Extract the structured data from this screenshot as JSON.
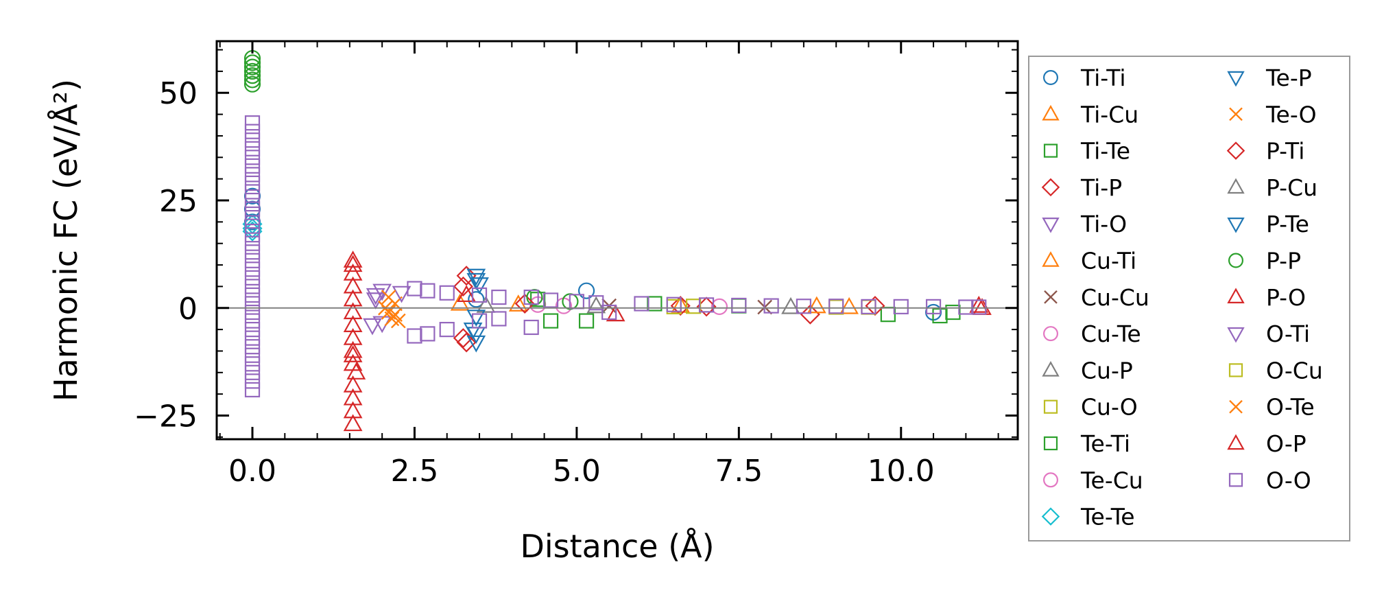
{
  "chart_data": {
    "type": "scatter",
    "xlabel": "Distance (Å)",
    "ylabel": "Harmonic FC (eV/Å²)",
    "xlim": [
      -0.55,
      11.8
    ],
    "ylim": [
      -30.5,
      62
    ],
    "xticks": [
      0.0,
      2.5,
      5.0,
      7.5,
      10.0
    ],
    "xtick_labels": [
      "0.0",
      "2.5",
      "5.0",
      "7.5",
      "10.0"
    ],
    "yticks": [
      -25,
      0,
      25,
      50
    ],
    "ytick_labels": [
      "−25",
      "0",
      "25",
      "50"
    ],
    "zero_line": true,
    "grid": false,
    "legend_position": "outside-right",
    "legend_columns": 2,
    "series": [
      {
        "name": "Ti-Ti",
        "marker": "circle",
        "color": "#1f77b4",
        "points": [
          [
            0,
            26
          ],
          [
            0,
            23
          ],
          [
            0,
            20
          ],
          [
            5.15,
            4
          ],
          [
            10.5,
            -1
          ],
          [
            3.45,
            2
          ]
        ]
      },
      {
        "name": "Ti-Cu",
        "marker": "triangle-up",
        "color": "#ff7f0e",
        "points": [
          [
            3.2,
            1
          ],
          [
            6.6,
            0.5
          ],
          [
            9.2,
            0.2
          ]
        ]
      },
      {
        "name": "Ti-Te",
        "marker": "square",
        "color": "#2ca02c",
        "points": [
          [
            4.6,
            -3
          ],
          [
            5.15,
            -3
          ],
          [
            6.2,
            1
          ],
          [
            9.8,
            -1.5
          ],
          [
            10.6,
            -1.8
          ]
        ]
      },
      {
        "name": "Ti-P",
        "marker": "diamond",
        "color": "#d62728",
        "points": [
          [
            3.3,
            7.5
          ],
          [
            3.25,
            5
          ],
          [
            3.25,
            -7
          ],
          [
            3.3,
            -8
          ],
          [
            6.6,
            0.5
          ],
          [
            8.6,
            -1.5
          ],
          [
            9.6,
            0.5
          ]
        ]
      },
      {
        "name": "Ti-O",
        "marker": "triangle-down",
        "color": "#9467bd",
        "points": [
          [
            1.85,
            -4
          ],
          [
            1.9,
            2
          ],
          [
            2.0,
            -3.5
          ]
        ]
      },
      {
        "name": "Cu-Ti",
        "marker": "triangle-up",
        "color": "#ff7f0e",
        "points": [
          [
            4.1,
            0.8
          ],
          [
            8.7,
            0.4
          ]
        ]
      },
      {
        "name": "Cu-Cu",
        "marker": "x",
        "color": "#8c564b",
        "points": [
          [
            5.5,
            0.5
          ],
          [
            7.9,
            0.2
          ]
        ]
      },
      {
        "name": "Cu-Te",
        "marker": "circle",
        "color": "#e377c2",
        "points": [
          [
            4.4,
            0.8
          ],
          [
            7.2,
            0.3
          ]
        ]
      },
      {
        "name": "Cu-P",
        "marker": "triangle-up",
        "color": "#7f7f7f",
        "points": [
          [
            3.6,
            0.5
          ],
          [
            8.3,
            0.2
          ]
        ]
      },
      {
        "name": "Cu-O",
        "marker": "square",
        "color": "#bcbd22",
        "points": [
          [
            6.5,
            0.3
          ],
          [
            9.0,
            0.2
          ]
        ]
      },
      {
        "name": "Te-Ti",
        "marker": "square",
        "color": "#2ca02c",
        "points": [
          [
            4.4,
            2
          ],
          [
            7.5,
            0.5
          ],
          [
            10.8,
            -1
          ]
        ]
      },
      {
        "name": "Te-Cu",
        "marker": "circle",
        "color": "#e377c2",
        "points": [
          [
            4.8,
            0.5
          ]
        ]
      },
      {
        "name": "Te-Te",
        "marker": "diamond",
        "color": "#17becf",
        "points": [
          [
            0,
            19.5
          ],
          [
            0,
            18.5
          ],
          [
            0,
            17.8
          ]
        ]
      },
      {
        "name": "Te-P",
        "marker": "triangle-down",
        "color": "#1f77b4",
        "points": [
          [
            3.45,
            7.5
          ],
          [
            3.45,
            6.5
          ],
          [
            3.5,
            5.5
          ]
        ]
      },
      {
        "name": "Te-O",
        "marker": "x",
        "color": "#ff7f0e",
        "points": [
          [
            2.05,
            0
          ],
          [
            2.1,
            -1
          ],
          [
            2.15,
            -2.5
          ],
          [
            2.2,
            1
          ],
          [
            2.25,
            -3
          ]
        ]
      },
      {
        "name": "P-Ti",
        "marker": "diamond",
        "color": "#d62728",
        "points": [
          [
            4.2,
            1
          ],
          [
            7.0,
            0.3
          ]
        ]
      },
      {
        "name": "P-Cu",
        "marker": "triangle-up",
        "color": "#7f7f7f",
        "points": [
          [
            5.3,
            0.4
          ]
        ]
      },
      {
        "name": "P-Te",
        "marker": "triangle-down",
        "color": "#1f77b4",
        "points": [
          [
            3.45,
            -2
          ],
          [
            3.4,
            -5
          ],
          [
            3.45,
            -6
          ],
          [
            3.45,
            -8
          ]
        ]
      },
      {
        "name": "P-P",
        "marker": "circle",
        "color": "#2ca02c",
        "points": [
          [
            0,
            58
          ],
          [
            0,
            57
          ],
          [
            0,
            56
          ],
          [
            0,
            55
          ],
          [
            0,
            54
          ],
          [
            0,
            53
          ],
          [
            0,
            52
          ],
          [
            4.35,
            2.5
          ],
          [
            4.9,
            1.5
          ]
        ]
      },
      {
        "name": "P-O",
        "marker": "triangle-up",
        "color": "#d62728",
        "points": [
          [
            1.55,
            10
          ],
          [
            1.55,
            8
          ],
          [
            1.55,
            5
          ],
          [
            1.55,
            2
          ],
          [
            1.55,
            -1
          ],
          [
            1.55,
            -4
          ],
          [
            1.55,
            -7
          ],
          [
            1.55,
            -10
          ],
          [
            1.55,
            -13
          ],
          [
            1.55,
            -18
          ],
          [
            1.55,
            -21
          ],
          [
            1.55,
            -24
          ],
          [
            1.55,
            -27
          ],
          [
            3.3,
            3
          ],
          [
            5.6,
            -1.5
          ],
          [
            11.25,
            0
          ]
        ]
      },
      {
        "name": "O-Ti",
        "marker": "triangle-down",
        "color": "#9467bd",
        "points": [
          [
            1.9,
            3
          ],
          [
            2.0,
            4
          ],
          [
            2.3,
            3.5
          ]
        ]
      },
      {
        "name": "O-Cu",
        "marker": "square",
        "color": "#bcbd22",
        "points": [
          [
            6.8,
            0.4
          ],
          [
            9.5,
            0.2
          ]
        ]
      },
      {
        "name": "O-Te",
        "marker": "x",
        "color": "#ff7f0e",
        "points": [
          [
            2.1,
            2.5
          ],
          [
            2.2,
            -1.5
          ]
        ]
      },
      {
        "name": "O-P",
        "marker": "triangle-up",
        "color": "#d62728",
        "points": [
          [
            1.55,
            11
          ],
          [
            1.55,
            -11
          ],
          [
            1.6,
            -15
          ],
          [
            11.2,
            0.5
          ]
        ]
      },
      {
        "name": "O-O",
        "marker": "square",
        "color": "#9467bd",
        "points": [
          [
            0,
            43
          ],
          [
            0,
            41
          ],
          [
            0,
            39
          ],
          [
            0,
            37
          ],
          [
            0,
            35
          ],
          [
            0,
            33
          ],
          [
            0,
            31
          ],
          [
            0,
            29
          ],
          [
            0,
            27
          ],
          [
            0,
            25
          ],
          [
            0,
            23
          ],
          [
            0,
            21
          ],
          [
            0,
            19
          ],
          [
            0,
            17
          ],
          [
            0,
            15
          ],
          [
            0,
            13
          ],
          [
            0,
            11
          ],
          [
            0,
            9
          ],
          [
            0,
            7
          ],
          [
            0,
            5
          ],
          [
            0,
            3
          ],
          [
            0,
            1
          ],
          [
            0,
            -1
          ],
          [
            0,
            -3
          ],
          [
            0,
            -5
          ],
          [
            0,
            -7
          ],
          [
            0,
            -9
          ],
          [
            0,
            -11
          ],
          [
            0,
            -13
          ],
          [
            0,
            -15
          ],
          [
            0,
            -17
          ],
          [
            0,
            -19
          ],
          [
            2.5,
            4.5
          ],
          [
            2.5,
            -6.5
          ],
          [
            2.7,
            4
          ],
          [
            2.7,
            -6
          ],
          [
            3.0,
            3.5
          ],
          [
            3.0,
            -5
          ],
          [
            3.5,
            3
          ],
          [
            3.5,
            -3
          ],
          [
            3.8,
            2.5
          ],
          [
            3.8,
            -2.5
          ],
          [
            4.3,
            2.5
          ],
          [
            4.3,
            -4.5
          ],
          [
            4.6,
            1.8
          ],
          [
            5.0,
            1.5
          ],
          [
            5.3,
            1.2
          ],
          [
            5.5,
            -1
          ],
          [
            6.0,
            1
          ],
          [
            6.5,
            0.8
          ],
          [
            7.0,
            0.7
          ],
          [
            7.5,
            0.6
          ],
          [
            8.0,
            0.5
          ],
          [
            8.5,
            0.4
          ],
          [
            9.0,
            0.4
          ],
          [
            9.5,
            0.3
          ],
          [
            10.0,
            0.3
          ],
          [
            10.5,
            0.3
          ],
          [
            11.0,
            0.2
          ],
          [
            11.2,
            0.2
          ]
        ]
      }
    ]
  }
}
